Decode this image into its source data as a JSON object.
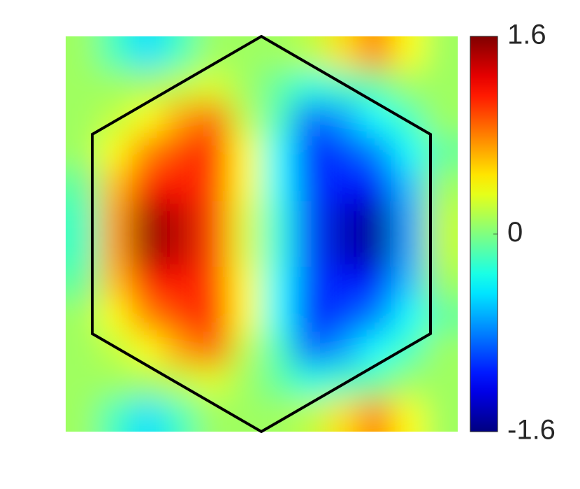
{
  "chart_data": {
    "type": "heatmap",
    "colormap": "jet",
    "z": [
      [
        0.1,
        -0.2,
        -0.5,
        -0.2,
        0.1,
        0.1,
        0.1,
        0.2,
        0.5,
        0.8,
        0.4,
        0.1
      ],
      [
        0.1,
        0.1,
        0.1,
        0.2,
        0.3,
        0.1,
        -0.1,
        -0.3,
        -0.2,
        -0.1,
        0.1,
        0.1
      ],
      [
        0.1,
        0.2,
        0.4,
        0.7,
        0.9,
        0.2,
        -0.2,
        -0.9,
        -0.7,
        -0.4,
        -0.2,
        0.1
      ],
      [
        0.1,
        0.4,
        0.8,
        1.0,
        1.1,
        0.4,
        -0.4,
        -1.1,
        -1.0,
        -0.8,
        -0.4,
        -0.1
      ],
      [
        -0.1,
        0.6,
        1.1,
        1.2,
        1.0,
        0.4,
        -0.4,
        -1.0,
        -1.2,
        -1.1,
        -0.6,
        0.1
      ],
      [
        -0.2,
        0.7,
        1.5,
        1.4,
        1.0,
        0.3,
        -0.3,
        -1.0,
        -1.4,
        -1.5,
        -0.7,
        0.2
      ],
      [
        -0.2,
        0.7,
        1.5,
        1.4,
        1.0,
        0.3,
        -0.3,
        -1.0,
        -1.4,
        -1.5,
        -0.7,
        0.2
      ],
      [
        -0.1,
        0.6,
        1.1,
        1.2,
        1.0,
        0.4,
        -0.4,
        -1.0,
        -1.2,
        -1.1,
        -0.6,
        0.1
      ],
      [
        0.1,
        0.4,
        0.8,
        1.0,
        1.1,
        0.4,
        -0.4,
        -1.1,
        -1.0,
        -0.8,
        -0.4,
        -0.1
      ],
      [
        0.1,
        0.2,
        0.4,
        0.7,
        0.9,
        0.2,
        -0.2,
        -0.9,
        -0.7,
        -0.4,
        -0.2,
        0.1
      ],
      [
        0.1,
        0.1,
        0.1,
        0.2,
        0.3,
        0.1,
        -0.1,
        -0.3,
        -0.2,
        -0.1,
        0.1,
        0.1
      ],
      [
        0.1,
        -0.2,
        -0.5,
        -0.2,
        0.1,
        0.1,
        0.1,
        0.2,
        0.5,
        0.8,
        0.4,
        0.1
      ]
    ],
    "zlim": [
      -1.6,
      1.6
    ],
    "colorbar_ticks": [
      -1.6,
      0,
      1.6
    ]
  }
}
